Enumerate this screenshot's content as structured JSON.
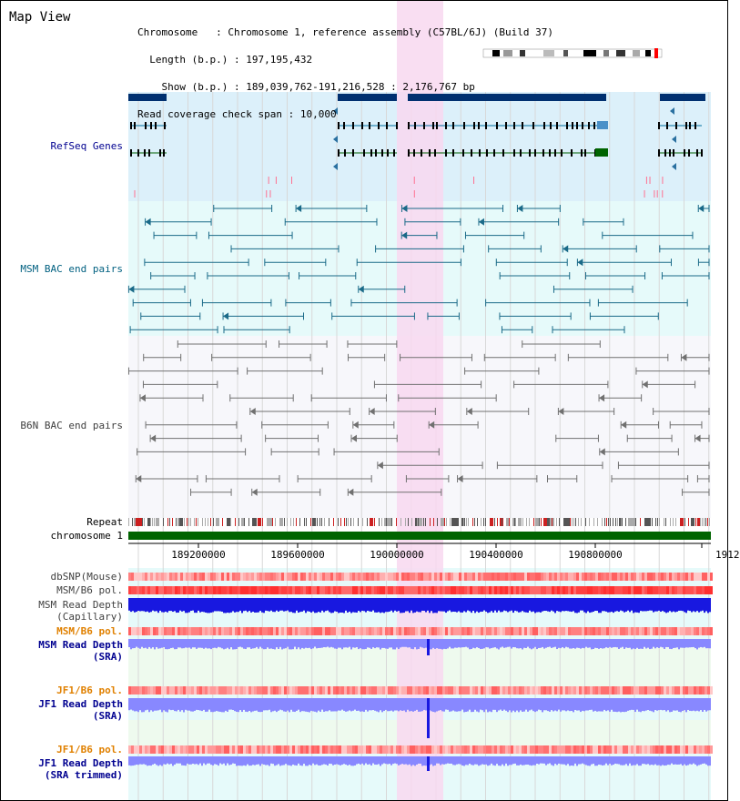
{
  "title": "Map View",
  "info": {
    "chromosome_key": "Chromosome",
    "chromosome_value": "Chromosome 1, reference assembly (C57BL/6J) (Build 37)",
    "length_key": "Length (b.p.)",
    "length_value": "197,195,432",
    "show_key": "Show (b.p.)",
    "show_value": "189,039,762-191,216,528 : 2,176,767 bp",
    "coverage_key": "Read coverage check span",
    "coverage_value": "10,000"
  },
  "tracks": {
    "refseq": "RefSeq Genes",
    "msm_bac": "MSM BAC end pairs",
    "b6n_bac": "B6N BAC end pairs",
    "repeat": "Repeat",
    "chromosome": "chromosome 1",
    "dbsnp": "dbSNP(Mouse)",
    "msm_pol": "MSM/B6 pol.",
    "msm_depth_1": "MSM Read Depth",
    "msm_depth_1b": "(Capillary)",
    "msm_pol2": "MSM/B6 pol.",
    "msm_depth_2": "MSM Read Depth",
    "msm_depth_2b": "(SRA)",
    "jf1_pol": "JF1/B6 pol.",
    "jf1_depth": "JF1 Read Depth",
    "jf1_depth_b": "(SRA)",
    "jf1_pol2": "JF1/B6 pol.",
    "jf1_depth_t": "JF1 Read Depth",
    "jf1_depth_tb": "(SRA trimmed)"
  },
  "axis_ticks": [
    "189200000",
    "189600000",
    "190000000",
    "190400000",
    "190800000",
    "1912"
  ],
  "colors": {
    "refseq_band": "#dcf0fa",
    "msm_band": "#e6fafa",
    "highlight": "#f8d8f0",
    "chromosome_bar": "#006400",
    "gene_blue": "#003070",
    "depth_blue": "#1818e0",
    "depth_sra": "#8888ff"
  }
}
